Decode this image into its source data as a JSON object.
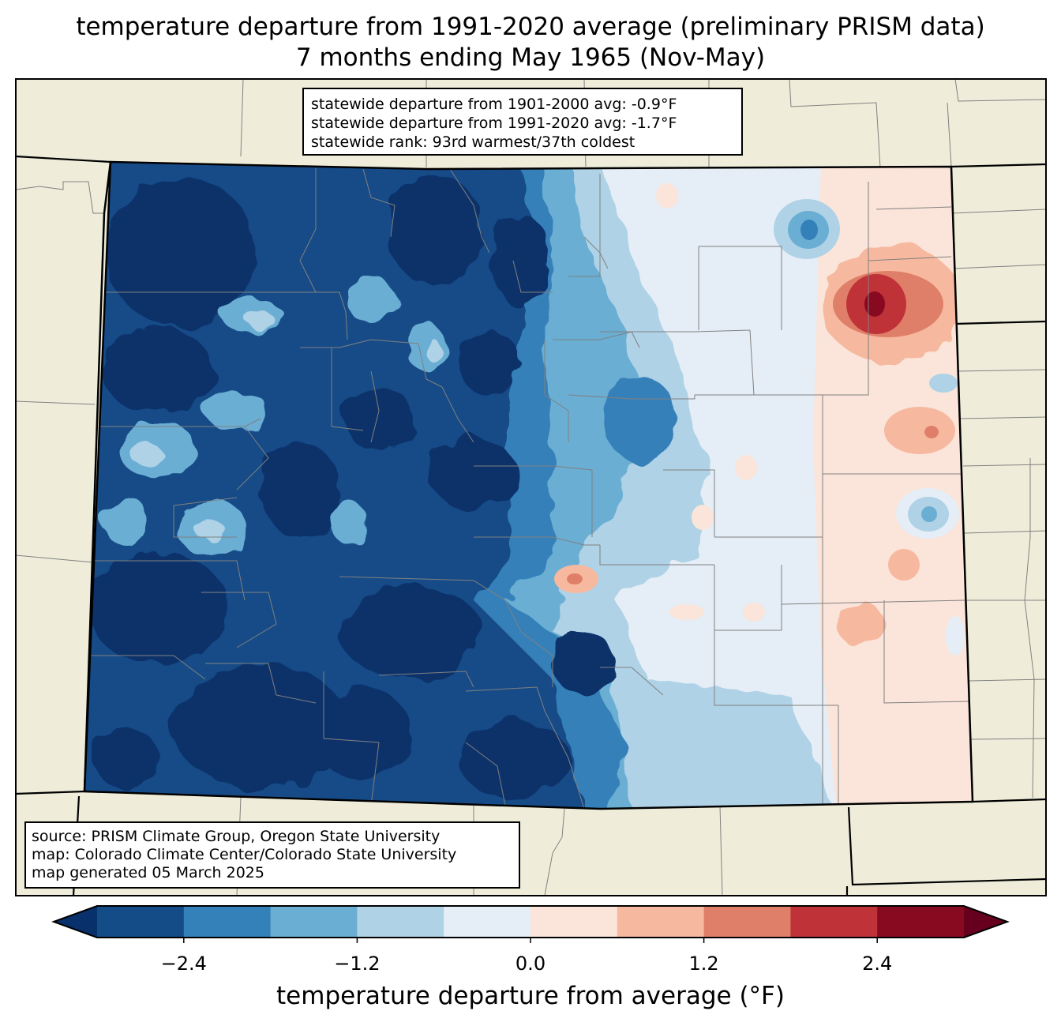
{
  "title": {
    "line1": "temperature departure from 1991-2020 average (preliminary PRISM data)",
    "line2": "7 months ending May 1965 (Nov-May)"
  },
  "stats": {
    "line1": "statewide departure from 1901-2000 avg: -0.9°F",
    "line2": "statewide departure from 1991-2020 avg: -1.7°F",
    "line3": "statewide rank: 93rd warmest/37th coldest"
  },
  "source": {
    "line1": "source: PRISM Climate Group, Oregon State University",
    "line2": "map: Colorado Climate Center/Colorado State University",
    "line3": "map generated 05 March 2025"
  },
  "colorbar": {
    "label": "temperature departure from average (°F)",
    "ticks": [
      "−2.4",
      "−1.2",
      "0.0",
      "1.2",
      "2.4"
    ],
    "bins": [
      -3.0,
      -2.4,
      -1.8,
      -1.2,
      -0.6,
      0.0,
      0.6,
      1.2,
      1.8,
      2.4,
      3.0
    ],
    "colors": [
      "#08306b",
      "#134c87",
      "#3480b9",
      "#6aaed4",
      "#afd2e6",
      "#e5eef6",
      "#fbe4d9",
      "#f6b99f",
      "#e07f69",
      "#bf3338",
      "#880a20",
      "#67001f"
    ]
  },
  "map": {
    "land_color": "#efedda",
    "state_name": "Colorado"
  }
}
